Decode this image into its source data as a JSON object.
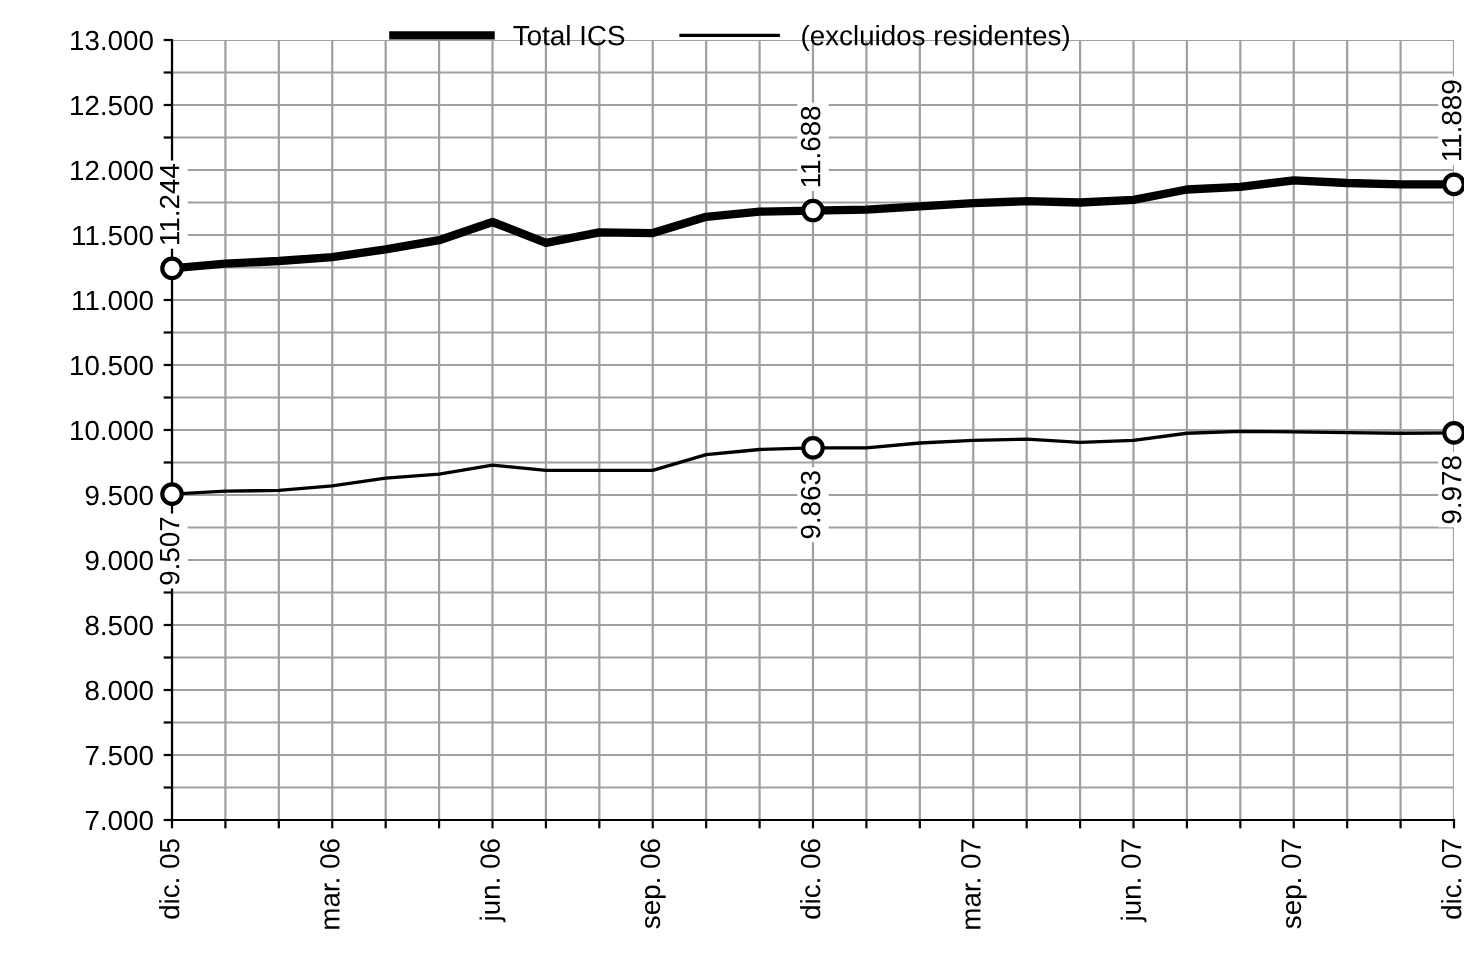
{
  "chart_data": {
    "type": "line",
    "categories": [
      "dic. 05",
      null,
      null,
      "mar. 06",
      null,
      null,
      "jun. 06",
      null,
      null,
      "sep. 06",
      null,
      null,
      "dic. 06",
      null,
      null,
      "mar. 07",
      null,
      null,
      "jun. 07",
      null,
      null,
      "sep. 07",
      null,
      null,
      "dic. 07"
    ],
    "series": [
      {
        "name": "Total ICS",
        "color": "#000000",
        "values": [
          11244,
          11280,
          11300,
          11330,
          11390,
          11460,
          11600,
          11440,
          11520,
          11515,
          11640,
          11680,
          11688,
          11695,
          11720,
          11745,
          11760,
          11750,
          11770,
          11850,
          11870,
          11920,
          11900,
          11890,
          11889
        ],
        "value_labels": [
          "11.244",
          null,
          null,
          null,
          null,
          null,
          null,
          null,
          null,
          null,
          null,
          null,
          "11.688",
          null,
          null,
          null,
          null,
          null,
          null,
          null,
          null,
          null,
          null,
          null,
          "11.889"
        ]
      },
      {
        "name": "(excluidos residentes)",
        "color": "#000000",
        "values": [
          9507,
          9530,
          9535,
          9570,
          9630,
          9660,
          9730,
          9690,
          9690,
          9690,
          9810,
          9850,
          9863,
          9863,
          9900,
          9920,
          9930,
          9905,
          9920,
          9975,
          9990,
          9985,
          9980,
          9975,
          9978
        ],
        "value_labels": [
          "9.507",
          null,
          null,
          null,
          null,
          null,
          null,
          null,
          null,
          null,
          null,
          null,
          "9.863",
          null,
          null,
          null,
          null,
          null,
          null,
          null,
          null,
          null,
          null,
          null,
          "9.978"
        ]
      }
    ],
    "ylim": [
      7000,
      13000
    ],
    "yticks": [
      {
        "value": 7000,
        "label": "7.000"
      },
      {
        "value": 7250,
        "label": null
      },
      {
        "value": 7500,
        "label": "7.500"
      },
      {
        "value": 7750,
        "label": null
      },
      {
        "value": 8000,
        "label": "8.000"
      },
      {
        "value": 8250,
        "label": null
      },
      {
        "value": 8500,
        "label": "8.500"
      },
      {
        "value": 8750,
        "label": null
      },
      {
        "value": 9000,
        "label": "9.000"
      },
      {
        "value": 9250,
        "label": null
      },
      {
        "value": 9500,
        "label": "9.500"
      },
      {
        "value": 9750,
        "label": null
      },
      {
        "value": 10000,
        "label": "10.000"
      },
      {
        "value": 10250,
        "label": null
      },
      {
        "value": 10500,
        "label": "10.500"
      },
      {
        "value": 10750,
        "label": null
      },
      {
        "value": 11000,
        "label": "11.000"
      },
      {
        "value": 11250,
        "label": null
      },
      {
        "value": 11500,
        "label": "11.500"
      },
      {
        "value": 11750,
        "label": null
      },
      {
        "value": 12000,
        "label": "12.000"
      },
      {
        "value": 12250,
        "label": null
      },
      {
        "value": 12500,
        "label": "12.500"
      },
      {
        "value": 12750,
        "label": null
      },
      {
        "value": 13000,
        "label": "13.000"
      }
    ],
    "grid": true,
    "legend": "top"
  }
}
